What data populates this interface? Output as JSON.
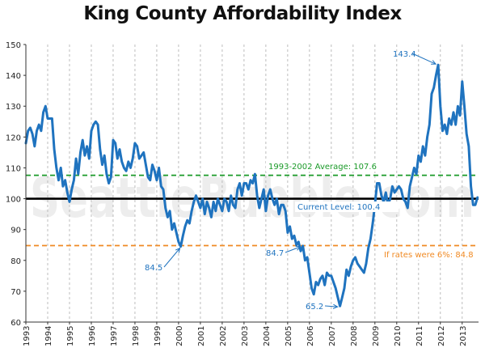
{
  "chart_data": {
    "type": "line",
    "title": "King County Affordability Index",
    "xlabel": "",
    "ylabel": "",
    "ylim": [
      60,
      150
    ],
    "yticks": [
      60,
      70,
      80,
      90,
      100,
      110,
      120,
      130,
      140,
      150
    ],
    "xlim": [
      1993.0,
      2013.75
    ],
    "xtick_labels": [
      "1993",
      "1994",
      "1995",
      "1996",
      "1997",
      "1998",
      "1999",
      "2000",
      "2001",
      "2002",
      "2003",
      "2004",
      "2005",
      "2006",
      "2007",
      "2008",
      "2009",
      "2010",
      "2011",
      "2012",
      "2013"
    ],
    "grid": "vertical dashed",
    "colors": {
      "series": "#1f73bf",
      "average": "#1a9a28",
      "rates": "#f08a24",
      "current": "#000000",
      "callout_text": "#1f73bf"
    },
    "series": [
      {
        "values": [
          [
            1993.0,
            118
          ],
          [
            1993.1,
            122
          ],
          [
            1993.2,
            123
          ],
          [
            1993.3,
            121
          ],
          [
            1993.4,
            117
          ],
          [
            1993.5,
            122
          ],
          [
            1993.6,
            124
          ],
          [
            1993.7,
            122
          ],
          [
            1993.8,
            128
          ],
          [
            1993.9,
            130
          ],
          [
            1994.0,
            126
          ],
          [
            1994.1,
            126
          ],
          [
            1994.2,
            126
          ],
          [
            1994.3,
            116
          ],
          [
            1994.4,
            110
          ],
          [
            1994.5,
            106
          ],
          [
            1994.6,
            110
          ],
          [
            1994.7,
            104
          ],
          [
            1994.8,
            106
          ],
          [
            1994.9,
            102
          ],
          [
            1995.0,
            99
          ],
          [
            1995.1,
            103
          ],
          [
            1995.2,
            106
          ],
          [
            1995.3,
            113
          ],
          [
            1995.4,
            108
          ],
          [
            1995.5,
            115
          ],
          [
            1995.6,
            119
          ],
          [
            1995.7,
            114
          ],
          [
            1995.8,
            117
          ],
          [
            1995.9,
            113
          ],
          [
            1996.0,
            122
          ],
          [
            1996.1,
            124
          ],
          [
            1996.2,
            125
          ],
          [
            1996.3,
            124
          ],
          [
            1996.4,
            116
          ],
          [
            1996.5,
            111
          ],
          [
            1996.6,
            114
          ],
          [
            1996.7,
            108
          ],
          [
            1996.8,
            105
          ],
          [
            1996.9,
            107
          ],
          [
            1997.0,
            119
          ],
          [
            1997.1,
            118
          ],
          [
            1997.2,
            113
          ],
          [
            1997.3,
            116
          ],
          [
            1997.4,
            112
          ],
          [
            1997.5,
            110
          ],
          [
            1997.6,
            109
          ],
          [
            1997.7,
            112
          ],
          [
            1997.8,
            110
          ],
          [
            1997.9,
            113
          ],
          [
            1998.0,
            118
          ],
          [
            1998.1,
            117
          ],
          [
            1998.2,
            113
          ],
          [
            1998.3,
            114
          ],
          [
            1998.4,
            115
          ],
          [
            1998.5,
            111
          ],
          [
            1998.6,
            107
          ],
          [
            1998.7,
            106
          ],
          [
            1998.8,
            111
          ],
          [
            1998.9,
            109
          ],
          [
            1999.0,
            106
          ],
          [
            1999.1,
            110
          ],
          [
            1999.2,
            104
          ],
          [
            1999.3,
            103
          ],
          [
            1999.4,
            97
          ],
          [
            1999.5,
            94
          ],
          [
            1999.6,
            96
          ],
          [
            1999.7,
            90
          ],
          [
            1999.8,
            92
          ],
          [
            1999.9,
            89
          ],
          [
            2000.0,
            86
          ],
          [
            2000.1,
            84.5
          ],
          [
            2000.2,
            88
          ],
          [
            2000.3,
            91
          ],
          [
            2000.4,
            93
          ],
          [
            2000.5,
            92
          ],
          [
            2000.6,
            96
          ],
          [
            2000.7,
            99
          ],
          [
            2000.8,
            101
          ],
          [
            2000.9,
            99
          ],
          [
            2001.0,
            97
          ],
          [
            2001.1,
            100
          ],
          [
            2001.2,
            95
          ],
          [
            2001.3,
            99
          ],
          [
            2001.4,
            97
          ],
          [
            2001.5,
            94
          ],
          [
            2001.6,
            99
          ],
          [
            2001.7,
            96
          ],
          [
            2001.8,
            100
          ],
          [
            2001.9,
            98
          ],
          [
            2002.0,
            96
          ],
          [
            2002.1,
            100
          ],
          [
            2002.2,
            99
          ],
          [
            2002.3,
            96
          ],
          [
            2002.4,
            101
          ],
          [
            2002.5,
            98
          ],
          [
            2002.6,
            97
          ],
          [
            2002.7,
            103
          ],
          [
            2002.8,
            105
          ],
          [
            2002.9,
            101
          ],
          [
            2003.0,
            105
          ],
          [
            2003.1,
            105
          ],
          [
            2003.2,
            103
          ],
          [
            2003.3,
            106
          ],
          [
            2003.4,
            105
          ],
          [
            2003.5,
            108
          ],
          [
            2003.6,
            101
          ],
          [
            2003.7,
            97
          ],
          [
            2003.8,
            100
          ],
          [
            2003.9,
            103
          ],
          [
            2004.0,
            96
          ],
          [
            2004.1,
            101
          ],
          [
            2004.2,
            103
          ],
          [
            2004.3,
            100
          ],
          [
            2004.4,
            98
          ],
          [
            2004.5,
            100
          ],
          [
            2004.6,
            95
          ],
          [
            2004.7,
            98
          ],
          [
            2004.8,
            98
          ],
          [
            2004.9,
            96
          ],
          [
            2005.0,
            89
          ],
          [
            2005.1,
            91
          ],
          [
            2005.2,
            87
          ],
          [
            2005.3,
            88
          ],
          [
            2005.4,
            85
          ],
          [
            2005.5,
            86
          ],
          [
            2005.6,
            83
          ],
          [
            2005.7,
            84.7
          ],
          [
            2005.8,
            80
          ],
          [
            2005.9,
            81
          ],
          [
            2006.0,
            76
          ],
          [
            2006.1,
            71
          ],
          [
            2006.2,
            69
          ],
          [
            2006.3,
            73
          ],
          [
            2006.4,
            72
          ],
          [
            2006.5,
            74
          ],
          [
            2006.6,
            75
          ],
          [
            2006.7,
            72
          ],
          [
            2006.8,
            76
          ],
          [
            2006.9,
            75
          ],
          [
            2007.0,
            75
          ],
          [
            2007.1,
            73
          ],
          [
            2007.2,
            71
          ],
          [
            2007.3,
            68
          ],
          [
            2007.4,
            65.2
          ],
          [
            2007.5,
            68
          ],
          [
            2007.6,
            71
          ],
          [
            2007.7,
            77
          ],
          [
            2007.8,
            75
          ],
          [
            2007.9,
            78
          ],
          [
            2008.0,
            80
          ],
          [
            2008.1,
            81
          ],
          [
            2008.2,
            79
          ],
          [
            2008.3,
            78
          ],
          [
            2008.4,
            77
          ],
          [
            2008.5,
            76
          ],
          [
            2008.6,
            79
          ],
          [
            2008.7,
            84
          ],
          [
            2008.8,
            87
          ],
          [
            2008.9,
            92
          ],
          [
            2009.0,
            98
          ],
          [
            2009.1,
            105
          ],
          [
            2009.2,
            105
          ],
          [
            2009.3,
            101
          ],
          [
            2009.4,
            99
          ],
          [
            2009.5,
            102
          ],
          [
            2009.6,
            98
          ],
          [
            2009.7,
            100
          ],
          [
            2009.8,
            104
          ],
          [
            2009.9,
            102
          ],
          [
            2010.0,
            103
          ],
          [
            2010.1,
            104
          ],
          [
            2010.2,
            103
          ],
          [
            2010.3,
            100
          ],
          [
            2010.4,
            99
          ],
          [
            2010.5,
            97
          ],
          [
            2010.6,
            104
          ],
          [
            2010.7,
            107
          ],
          [
            2010.8,
            110
          ],
          [
            2010.9,
            108
          ],
          [
            2011.0,
            114
          ],
          [
            2011.1,
            112
          ],
          [
            2011.2,
            117
          ],
          [
            2011.3,
            114
          ],
          [
            2011.4,
            120
          ],
          [
            2011.5,
            124
          ],
          [
            2011.6,
            134
          ],
          [
            2011.7,
            136
          ],
          [
            2011.8,
            140
          ],
          [
            2011.9,
            143.4
          ],
          [
            2012.0,
            130
          ],
          [
            2012.1,
            122
          ],
          [
            2012.2,
            124
          ],
          [
            2012.3,
            121
          ],
          [
            2012.4,
            126
          ],
          [
            2012.5,
            124
          ],
          [
            2012.6,
            128
          ],
          [
            2012.7,
            124
          ],
          [
            2012.8,
            130
          ],
          [
            2012.9,
            127
          ],
          [
            2013.0,
            138
          ],
          [
            2013.1,
            130
          ],
          [
            2013.2,
            121
          ],
          [
            2013.3,
            117
          ],
          [
            2013.4,
            104
          ],
          [
            2013.5,
            98
          ],
          [
            2013.6,
            98
          ],
          [
            2013.7,
            100.4
          ]
        ]
      }
    ],
    "reference_lines": [
      {
        "value": 107.6,
        "label": "1993-2002 Average: 107.6",
        "style": "dashed",
        "color": "#1a9a28"
      },
      {
        "value": 100,
        "label": "Current Level: 100.4",
        "style": "solid",
        "color": "#000000"
      },
      {
        "value": 84.8,
        "label": "If rates were 6%: 84.8",
        "style": "dashed",
        "color": "#f08a24"
      }
    ],
    "annotations": [
      {
        "label": "143.4",
        "x": 2011.9,
        "y": 143.4
      },
      {
        "label": "84.5",
        "x": 2000.1,
        "y": 84.5
      },
      {
        "label": "84.7",
        "x": 2005.7,
        "y": 84.7
      },
      {
        "label": "65.2",
        "x": 2007.4,
        "y": 65.2
      }
    ],
    "watermark": "SeattleBubble.com"
  }
}
